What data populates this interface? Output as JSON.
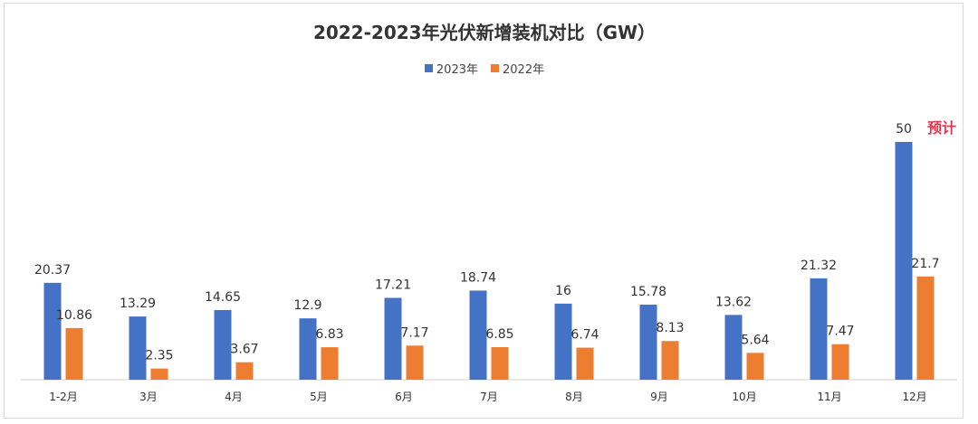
{
  "chart_data": {
    "type": "bar",
    "title": "2022-2023年光伏新增装机对比（GW）",
    "categories": [
      "1-2月",
      "3月",
      "4月",
      "5月",
      "6月",
      "7月",
      "8月",
      "9月",
      "10月",
      "11月",
      "12月"
    ],
    "series": [
      {
        "name": "2023年",
        "color": "#4472c4",
        "values": [
          20.37,
          13.29,
          14.65,
          12.9,
          17.21,
          18.74,
          16,
          15.78,
          13.62,
          21.32,
          50
        ]
      },
      {
        "name": "2022年",
        "color": "#ed7d31",
        "values": [
          10.86,
          2.35,
          3.67,
          6.83,
          7.17,
          6.85,
          6.74,
          8.13,
          5.64,
          7.47,
          21.7
        ]
      }
    ],
    "ylim": [
      0,
      55
    ],
    "grid": false,
    "legend_position": "top-center",
    "annotation": {
      "category": "12月",
      "series": "2023年",
      "text": "预计",
      "color": "#e8364f"
    }
  }
}
